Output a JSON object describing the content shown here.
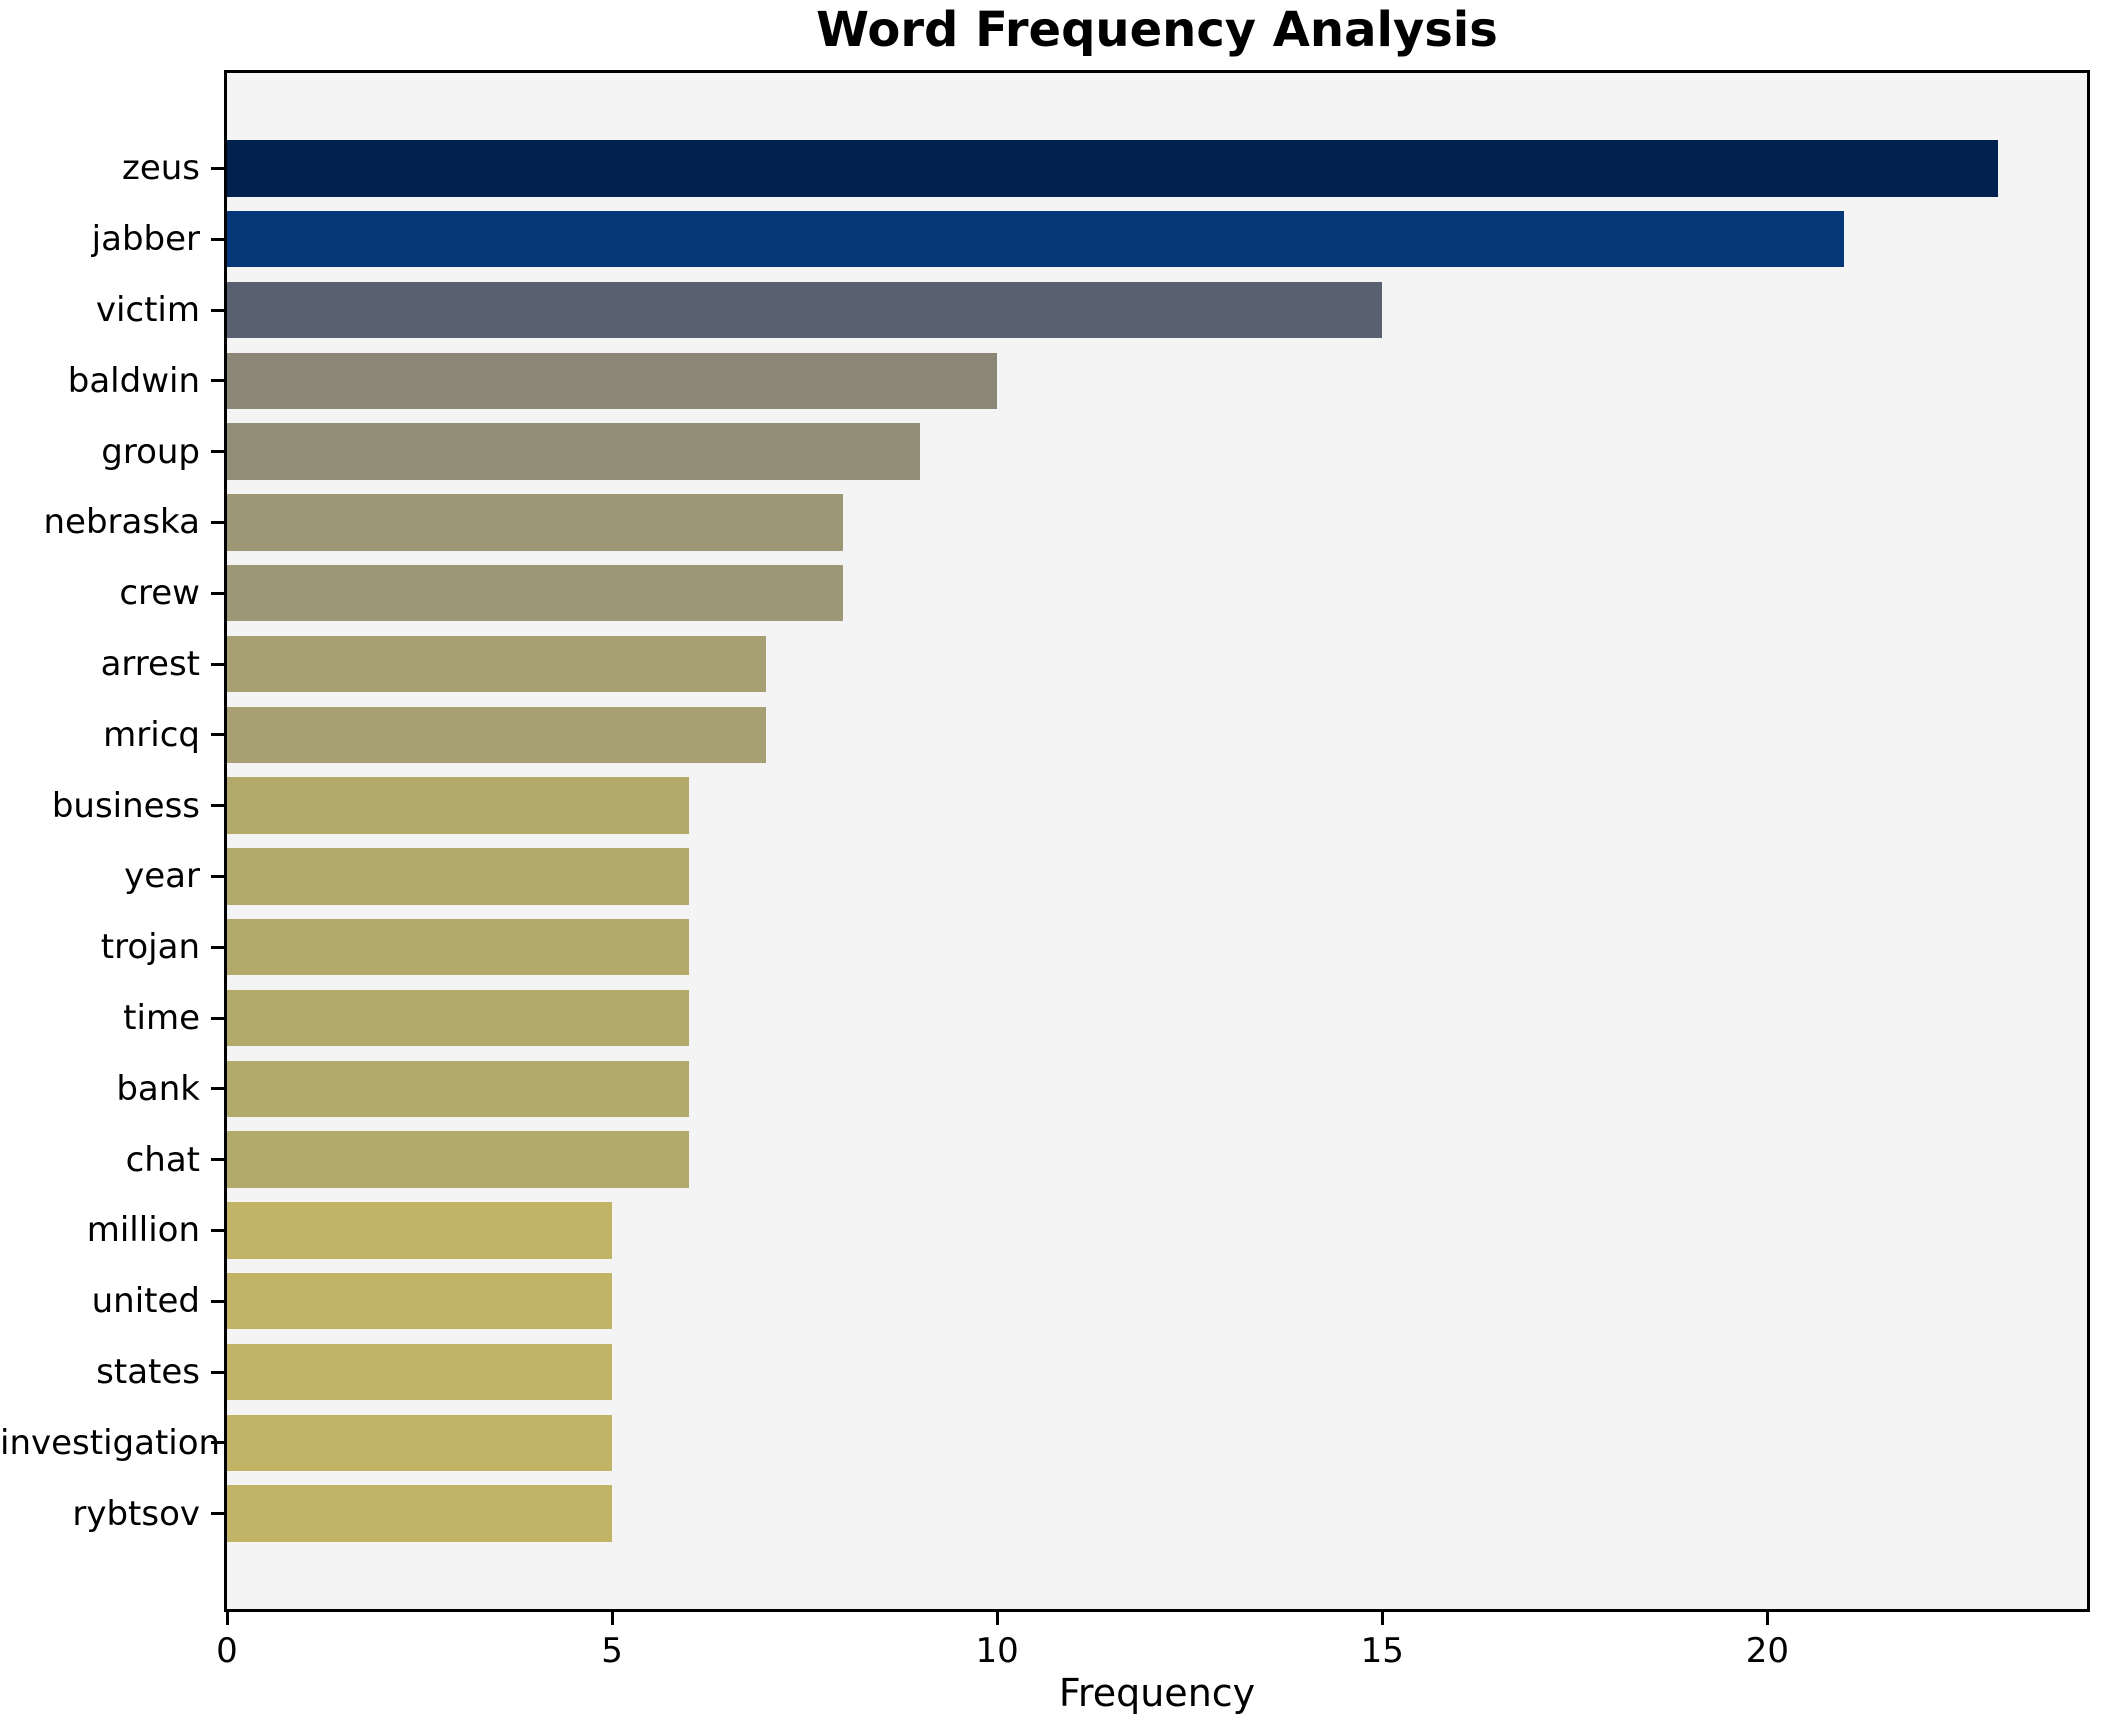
{
  "chart_data": {
    "type": "bar",
    "orientation": "horizontal",
    "title": "Word Frequency Analysis",
    "xlabel": "Frequency",
    "ylabel": "",
    "xlim": [
      0,
      24.15
    ],
    "xticks": [
      0,
      5,
      10,
      15,
      20
    ],
    "grid": false,
    "legend": "none",
    "plot_background": "#f5f4f5",
    "spine_color": "#000000",
    "categories": [
      "zeus",
      "jabber",
      "victim",
      "baldwin",
      "group",
      "nebraska",
      "crew",
      "arrest",
      "mricq",
      "business",
      "year",
      "trojan",
      "time",
      "bank",
      "chat",
      "million",
      "united",
      "states",
      "investigation",
      "rybtsov"
    ],
    "values": [
      23,
      21,
      15,
      10,
      9,
      8,
      8,
      7,
      7,
      6,
      6,
      6,
      6,
      6,
      6,
      5,
      5,
      5,
      5,
      5
    ],
    "bar_colors": [
      "#01224e",
      "#063879",
      "#596070",
      "#8a8678",
      "#938e78",
      "#9d9775",
      "#9d9775",
      "#a6a072",
      "#a6a072",
      "#b2aa6b",
      "#b2aa6b",
      "#b2aa6b",
      "#b2aa6b",
      "#b2aa6b",
      "#b2aa6b",
      "#c2b466",
      "#c2b466",
      "#c2b466",
      "#c2b466",
      "#c2b466"
    ]
  }
}
